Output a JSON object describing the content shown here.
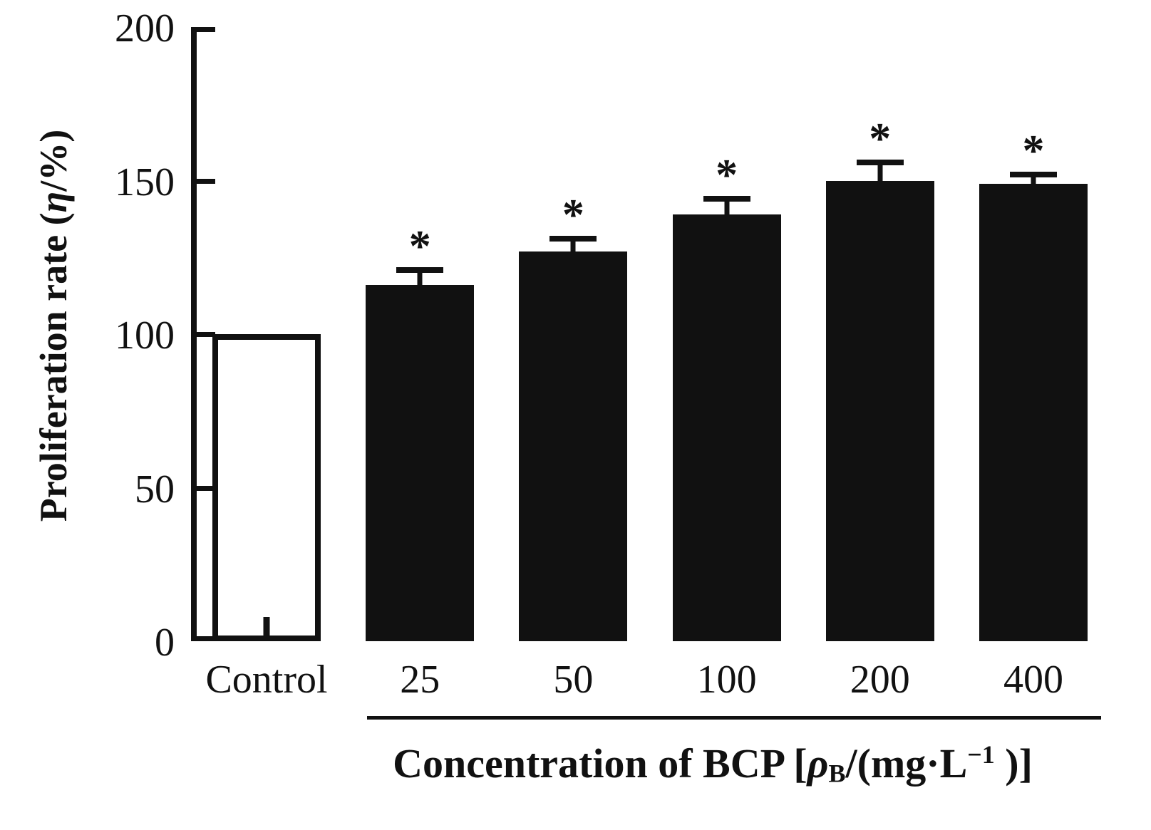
{
  "chart_data": {
    "type": "bar",
    "categories": [
      "Control",
      "25",
      "50",
      "100",
      "200",
      "400"
    ],
    "values": [
      100,
      116,
      127,
      139,
      150,
      149
    ],
    "errors": [
      0,
      5,
      4,
      5,
      6,
      3
    ],
    "significance": [
      "",
      "*",
      "*",
      "*",
      "*",
      "*"
    ],
    "bar_fill": [
      "white",
      "black",
      "black",
      "black",
      "black",
      "black"
    ],
    "control_bottom_tick": true,
    "title": "",
    "xlabel": "Concentration of BCP [ρB/(mg·L−1 )]",
    "ylabel": "Proliferation rate (η/%)",
    "ylim": [
      0,
      200
    ],
    "yticks": [
      200,
      150,
      100,
      50,
      0
    ],
    "grid": false,
    "legend": "none"
  },
  "labels": {
    "ylabel_prefix": "Proliferation rate (",
    "ylabel_eta": "η",
    "ylabel_suffix": "/%)",
    "xlabel_prefix": "Concentration of BCP [",
    "xlabel_rho": "ρ",
    "xlabel_sub": "B",
    "xlabel_mid": "/(mg·L",
    "xlabel_sup": "−1",
    "xlabel_suffix": " )]"
  },
  "colors": {
    "bar_filled": "#111111",
    "bar_open_fill": "#ffffff",
    "axis": "#111111",
    "background": "#ffffff"
  }
}
